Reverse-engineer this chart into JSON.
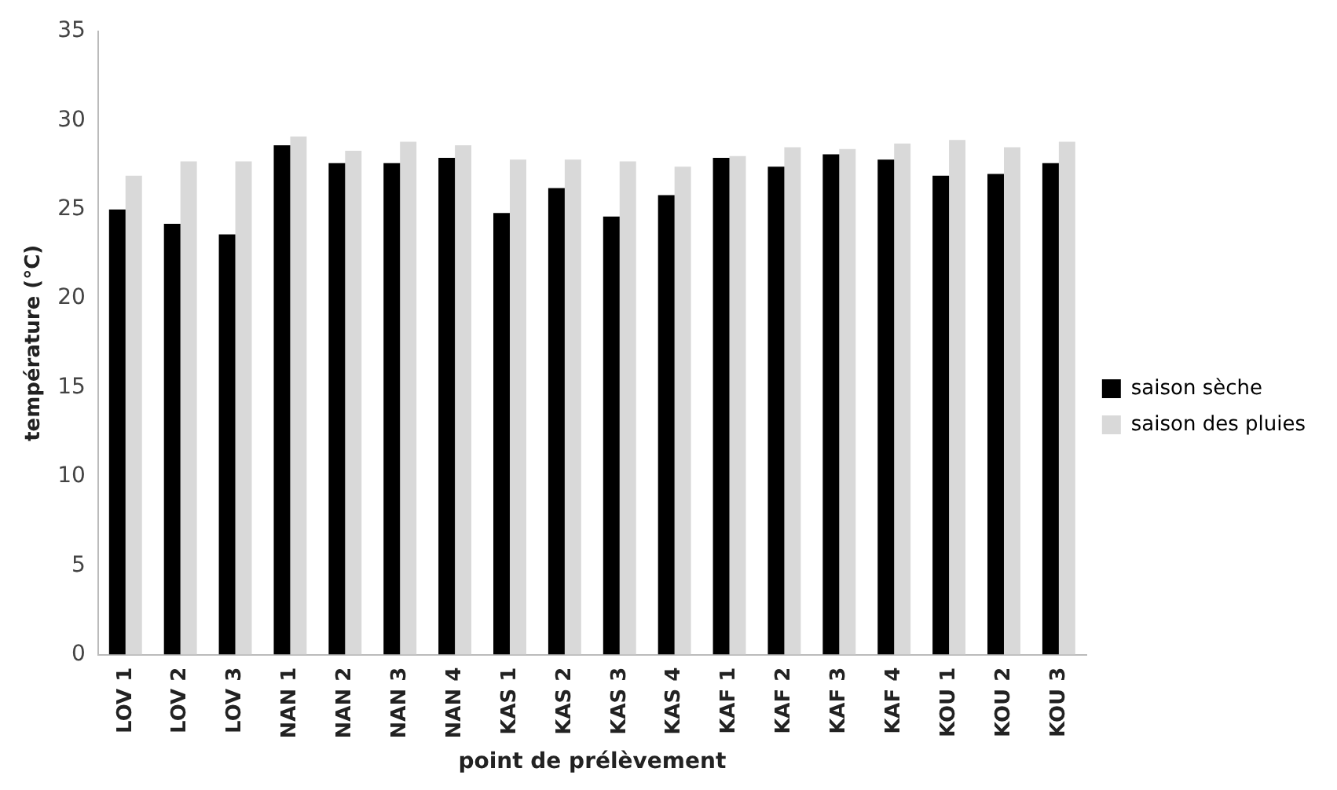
{
  "chart_data": {
    "type": "bar",
    "xlabel": "point de prélèvement",
    "ylabel": "température (°C)",
    "categories": [
      "LOV 1",
      "LOV 2",
      "LOV 3",
      "NAN 1",
      "NAN 2",
      "NAN 3",
      "NAN 4",
      "KAS 1",
      "KAS 2",
      "KAS 3",
      "KAS 4",
      "KAF 1",
      "KAF 2",
      "KAF 3",
      "KAF 4",
      "KOU 1",
      "KOU 2",
      "KOU 3"
    ],
    "series": [
      {
        "name": "saison sèche",
        "color": "#000000",
        "values": [
          25.0,
          24.2,
          23.6,
          28.6,
          27.6,
          27.6,
          27.9,
          24.8,
          26.2,
          24.6,
          25.8,
          27.9,
          27.4,
          28.1,
          27.8,
          26.9,
          27.0,
          27.6
        ]
      },
      {
        "name": "saison des pluies",
        "color": "#d9d9d9",
        "values": [
          26.9,
          27.7,
          27.7,
          29.1,
          28.3,
          28.8,
          28.6,
          27.8,
          27.8,
          27.7,
          27.4,
          28.0,
          28.5,
          28.4,
          28.7,
          28.9,
          28.5,
          28.8
        ]
      }
    ],
    "ylim": [
      0,
      35
    ],
    "yticks": [
      0,
      5,
      10,
      15,
      20,
      25,
      30,
      35
    ],
    "grid": false,
    "legend": "right"
  }
}
